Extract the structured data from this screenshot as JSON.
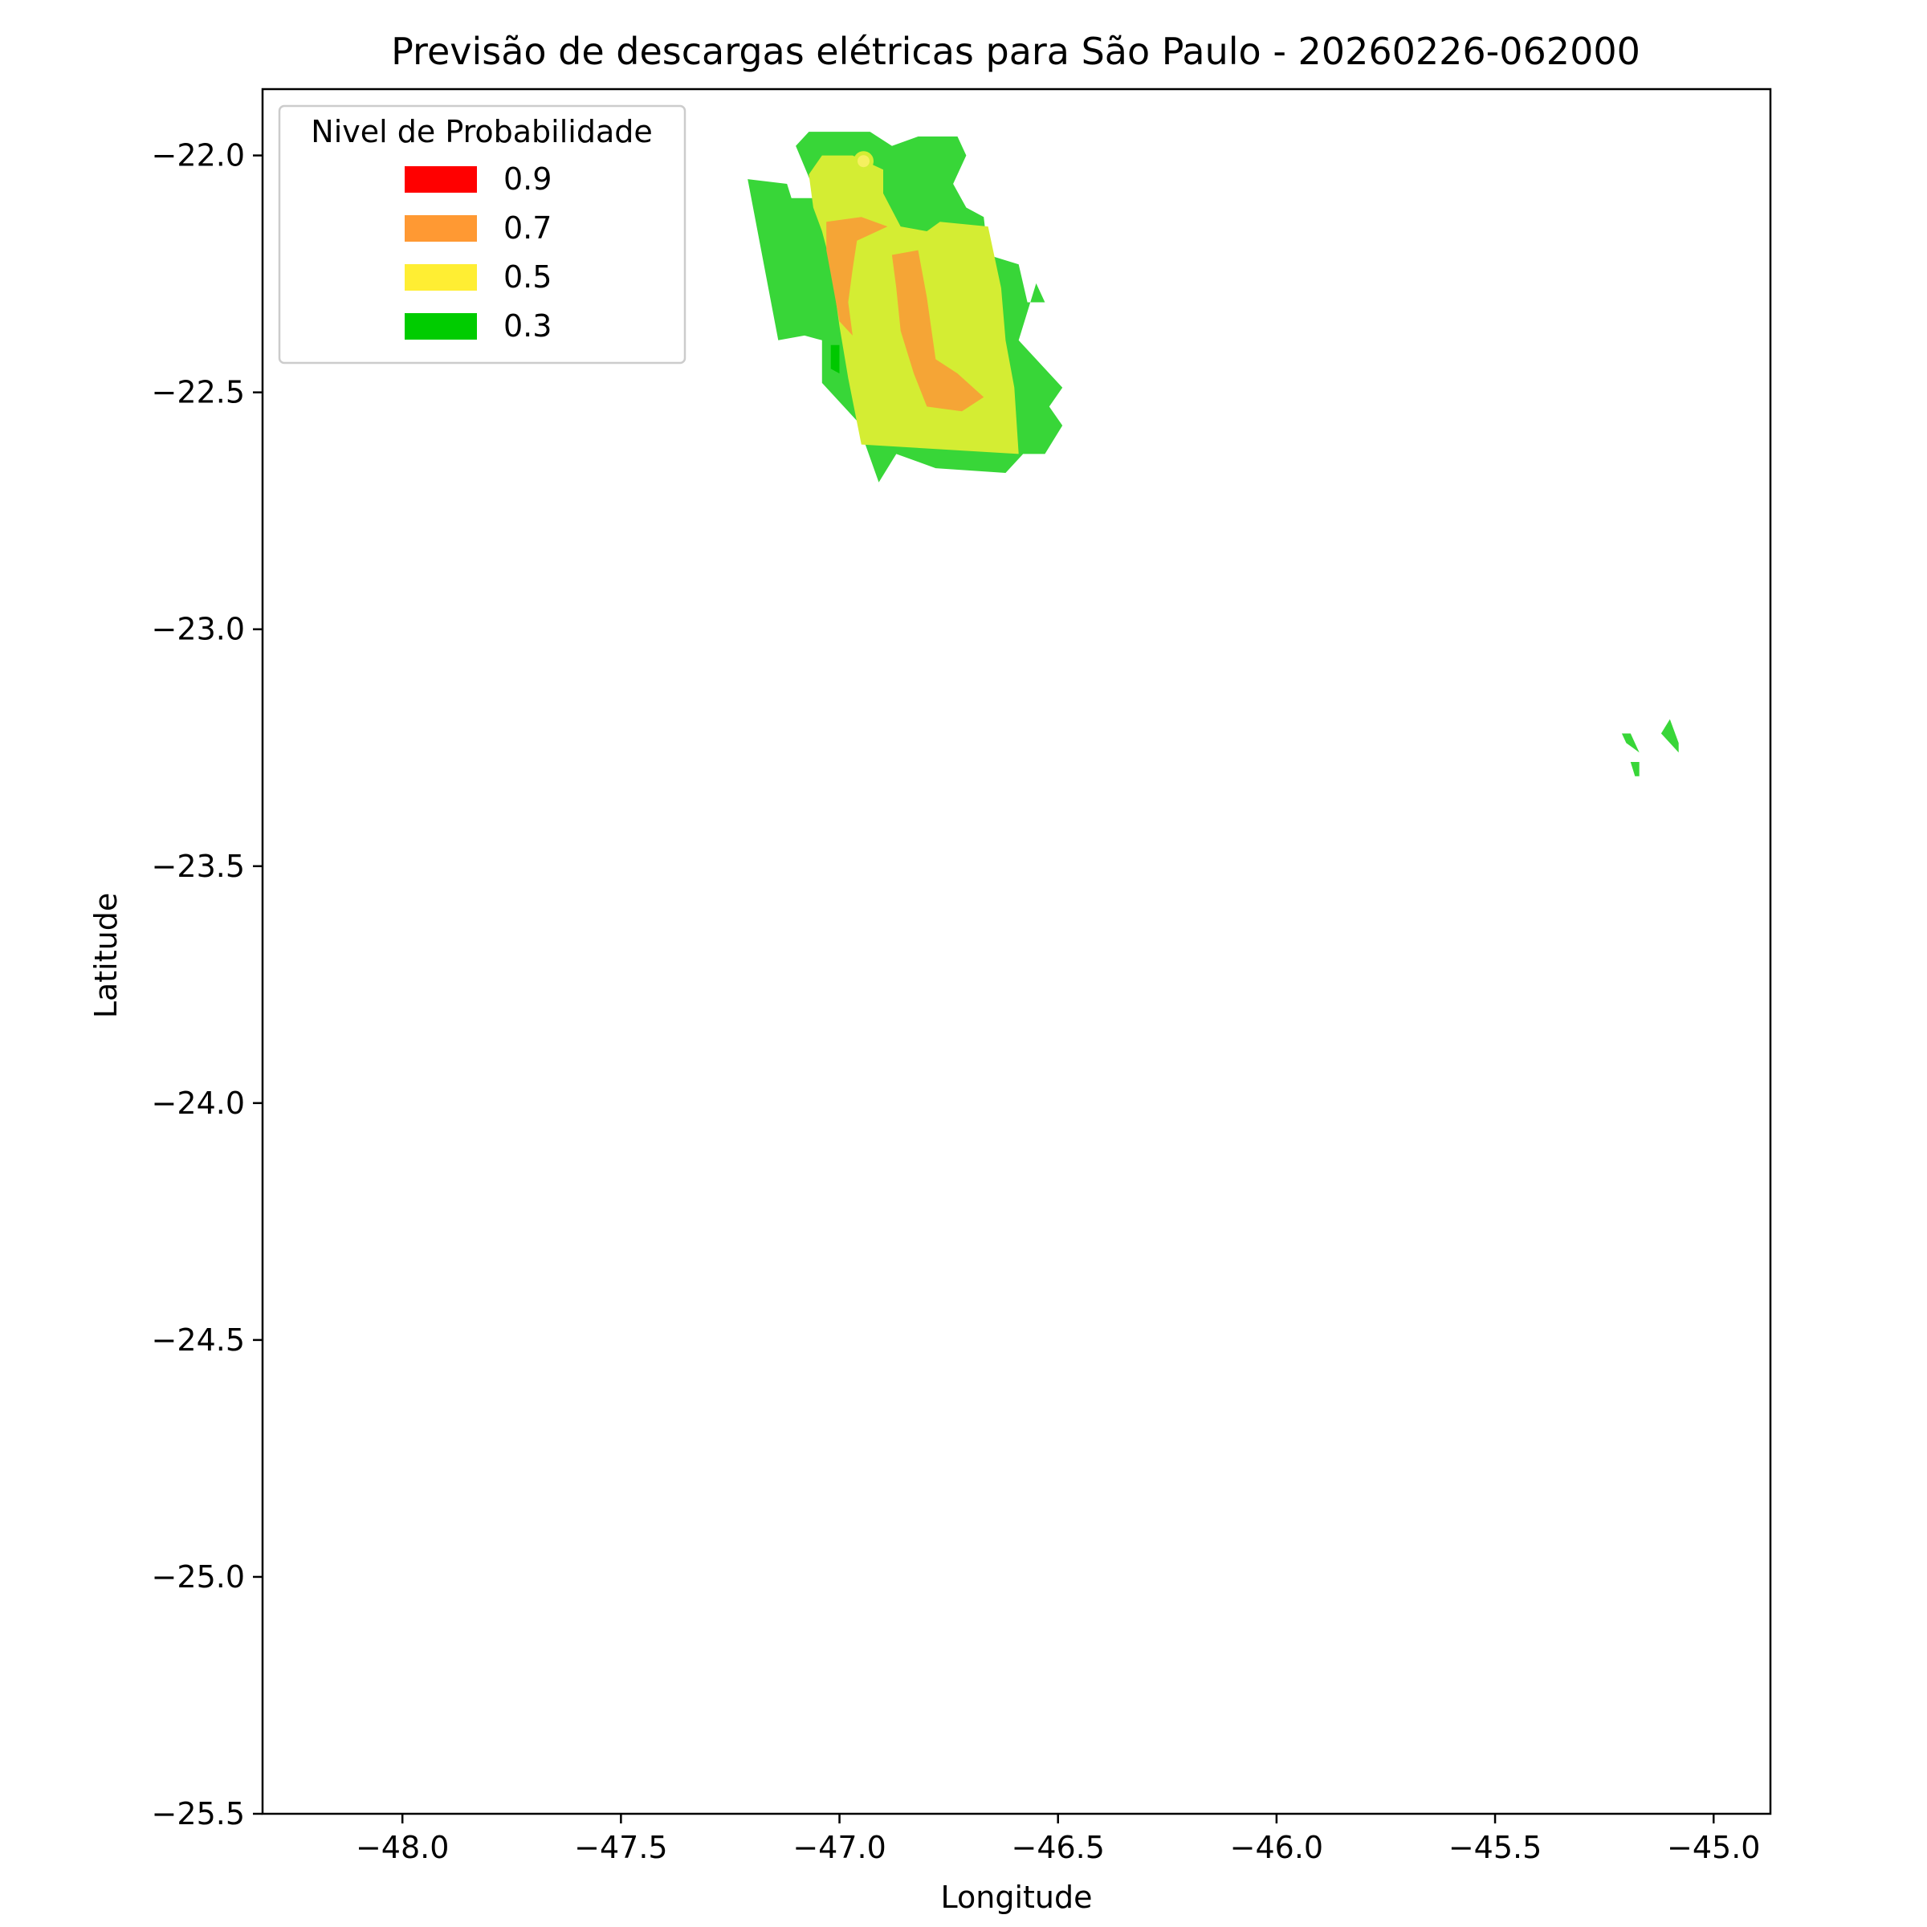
{
  "chart_data": {
    "type": "map",
    "title": "Previsão de descargas elétricas para São Paulo - 20260226-062000",
    "xlabel": "Longitude",
    "ylabel": "Latitude",
    "xlim": [
      -48.32,
      -44.87
    ],
    "ylim": [
      -25.5,
      -21.86
    ],
    "x_ticks": [
      -48.0,
      -47.5,
      -47.0,
      -46.5,
      -46.0,
      -45.5,
      -45.0
    ],
    "x_tick_labels": [
      "−48.0",
      "−47.5",
      "−47.0",
      "−46.5",
      "−46.0",
      "−45.5",
      "−45.0"
    ],
    "y_ticks": [
      -22.0,
      -22.5,
      -23.0,
      -23.5,
      -24.0,
      -24.5,
      -25.0,
      -25.5
    ],
    "y_tick_labels": [
      "−22.0",
      "−22.5",
      "−23.0",
      "−23.5",
      "−24.0",
      "−24.5",
      "−25.0",
      "−25.5"
    ],
    "grid": false,
    "legend": {
      "title": "Nivel de Probabilidade",
      "placement": "top-left",
      "entries": [
        {
          "label": "0.9",
          "color": "#ff0000"
        },
        {
          "label": "0.7",
          "color": "#ff9933"
        },
        {
          "label": "0.5",
          "color": "#ffee33"
        },
        {
          "label": "0.3",
          "color": "#00cc00"
        }
      ]
    },
    "regions": [
      {
        "level": "0.3",
        "color": "#38d638",
        "points": [
          [
            -47.21,
            -22.05
          ],
          [
            -47.12,
            -22.06
          ],
          [
            -47.11,
            -22.09
          ],
          [
            -47.05,
            -22.09
          ],
          [
            -47.1,
            -21.98
          ],
          [
            -47.07,
            -21.95
          ],
          [
            -46.93,
            -21.95
          ],
          [
            -46.88,
            -21.98
          ],
          [
            -46.82,
            -21.96
          ],
          [
            -46.73,
            -21.96
          ],
          [
            -46.71,
            -22.0
          ],
          [
            -46.74,
            -22.06
          ],
          [
            -46.71,
            -22.11
          ],
          [
            -46.67,
            -22.13
          ],
          [
            -46.66,
            -22.21
          ],
          [
            -46.59,
            -22.23
          ],
          [
            -46.57,
            -22.31
          ],
          [
            -46.53,
            -22.31
          ],
          [
            -46.55,
            -22.27
          ],
          [
            -46.59,
            -22.39
          ],
          [
            -46.54,
            -22.44
          ],
          [
            -46.49,
            -22.49
          ],
          [
            -46.52,
            -22.53
          ],
          [
            -46.49,
            -22.57
          ],
          [
            -46.53,
            -22.63
          ],
          [
            -46.58,
            -22.63
          ],
          [
            -46.62,
            -22.67
          ],
          [
            -46.78,
            -22.66
          ],
          [
            -46.87,
            -22.63
          ],
          [
            -46.91,
            -22.69
          ],
          [
            -46.96,
            -22.56
          ],
          [
            -47.04,
            -22.48
          ],
          [
            -47.04,
            -22.39
          ],
          [
            -47.08,
            -22.38
          ],
          [
            -47.14,
            -22.39
          ]
        ]
      },
      {
        "level": "0.5",
        "color": "#d4ed33",
        "points": [
          [
            -47.07,
            -22.04
          ],
          [
            -47.04,
            -22.0
          ],
          [
            -46.97,
            -22.0
          ],
          [
            -46.9,
            -22.03
          ],
          [
            -46.9,
            -22.08
          ],
          [
            -46.86,
            -22.15
          ],
          [
            -46.8,
            -22.16
          ],
          [
            -46.77,
            -22.14
          ],
          [
            -46.66,
            -22.15
          ],
          [
            -46.63,
            -22.28
          ],
          [
            -46.62,
            -22.39
          ],
          [
            -46.6,
            -22.49
          ],
          [
            -46.59,
            -22.63
          ],
          [
            -46.95,
            -22.61
          ],
          [
            -46.98,
            -22.47
          ],
          [
            -47.0,
            -22.36
          ],
          [
            -47.02,
            -22.23
          ],
          [
            -47.04,
            -22.16
          ],
          [
            -47.06,
            -22.11
          ]
        ]
      },
      {
        "level": "0.7",
        "color": "#f5a536",
        "points": [
          [
            -46.88,
            -22.21
          ],
          [
            -46.87,
            -22.28
          ],
          [
            -46.86,
            -22.37
          ],
          [
            -46.83,
            -22.46
          ],
          [
            -46.8,
            -22.53
          ],
          [
            -46.72,
            -22.54
          ],
          [
            -46.67,
            -22.51
          ],
          [
            -46.73,
            -22.46
          ],
          [
            -46.78,
            -22.43
          ],
          [
            -46.8,
            -22.3
          ],
          [
            -46.82,
            -22.2
          ]
        ]
      },
      {
        "level": "0.7",
        "color": "#f5a536",
        "points": [
          [
            -47.03,
            -22.14
          ],
          [
            -46.95,
            -22.13
          ],
          [
            -46.89,
            -22.15
          ],
          [
            -46.96,
            -22.18
          ],
          [
            -46.97,
            -22.24
          ],
          [
            -46.98,
            -22.31
          ],
          [
            -46.97,
            -22.38
          ],
          [
            -47.0,
            -22.35
          ],
          [
            -47.02,
            -22.25
          ],
          [
            -47.03,
            -22.2
          ]
        ]
      },
      {
        "level": "0.3",
        "color": "#38d638",
        "points": [
          [
            -45.21,
            -23.22
          ],
          [
            -45.19,
            -23.22
          ],
          [
            -45.17,
            -23.26
          ],
          [
            -45.2,
            -23.24
          ]
        ]
      },
      {
        "level": "0.3",
        "color": "#38d638",
        "points": [
          [
            -45.19,
            -23.28
          ],
          [
            -45.17,
            -23.28
          ],
          [
            -45.17,
            -23.31
          ],
          [
            -45.18,
            -23.31
          ]
        ]
      },
      {
        "level": "0.3",
        "color": "#38d638",
        "points": [
          [
            -45.1,
            -23.19
          ],
          [
            -45.08,
            -23.24
          ],
          [
            -45.08,
            -23.26
          ],
          [
            -45.12,
            -23.22
          ]
        ]
      },
      {
        "level": "0.3",
        "color": "#00c800",
        "points": [
          [
            -47.02,
            -22.4
          ],
          [
            -47.0,
            -22.4
          ],
          [
            -47.0,
            -22.46
          ],
          [
            -47.02,
            -22.45
          ]
        ]
      }
    ]
  }
}
